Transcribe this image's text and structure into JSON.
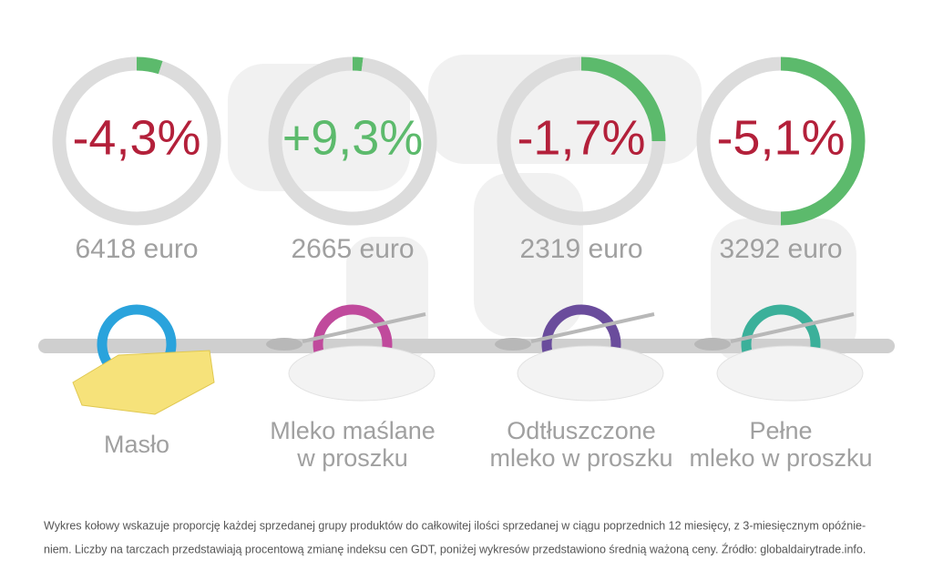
{
  "chart_data": [
    {
      "type": "donut",
      "values": [
        5,
        95
      ],
      "colors": [
        "#5cba6c",
        "#dcdcdc"
      ],
      "center_label": "-4,3%",
      "center_color": "#b3203a",
      "caption": "6418 euro",
      "label_lines": [
        "Masło"
      ],
      "ring_color": "#2aa3dc"
    },
    {
      "type": "donut",
      "values": [
        2,
        98
      ],
      "colors": [
        "#5cba6c",
        "#dcdcdc"
      ],
      "center_label": "+9,3%",
      "center_color": "#5cba6c",
      "caption": "2665 euro",
      "label_lines": [
        "Mleko maślane",
        "w proszku"
      ],
      "ring_color": "#c04a9c"
    },
    {
      "type": "donut",
      "values": [
        25,
        75
      ],
      "colors": [
        "#5cba6c",
        "#dcdcdc"
      ],
      "center_label": "-1,7%",
      "center_color": "#b3203a",
      "caption": "2319 euro",
      "label_lines": [
        "Odtłuszczone",
        "mleko w proszku"
      ],
      "ring_color": "#6a4c9c"
    },
    {
      "type": "donut",
      "values": [
        50,
        50
      ],
      "colors": [
        "#5cba6c",
        "#dcdcdc"
      ],
      "center_label": "-5,1%",
      "center_color": "#b3203a",
      "caption": "3292 euro",
      "label_lines": [
        "Pełne",
        "mleko w proszku"
      ],
      "ring_color": "#3bb09a"
    }
  ],
  "footnote": [
    "Wykres kołowy wskazuje proporcję każdej sprzedanej grupy produktów do całkowitej ilości sprzedanej w ciągu poprzednich 12 miesięcy, z 3-miesięcznym opóźnie-",
    "niem. Liczby na tarczach przedstawiają procentową zmianę indeksu cen GDT, poniżej wykresów przedstawiono średnią ważoną ceny. Źródło: globaldairytrade.info."
  ]
}
